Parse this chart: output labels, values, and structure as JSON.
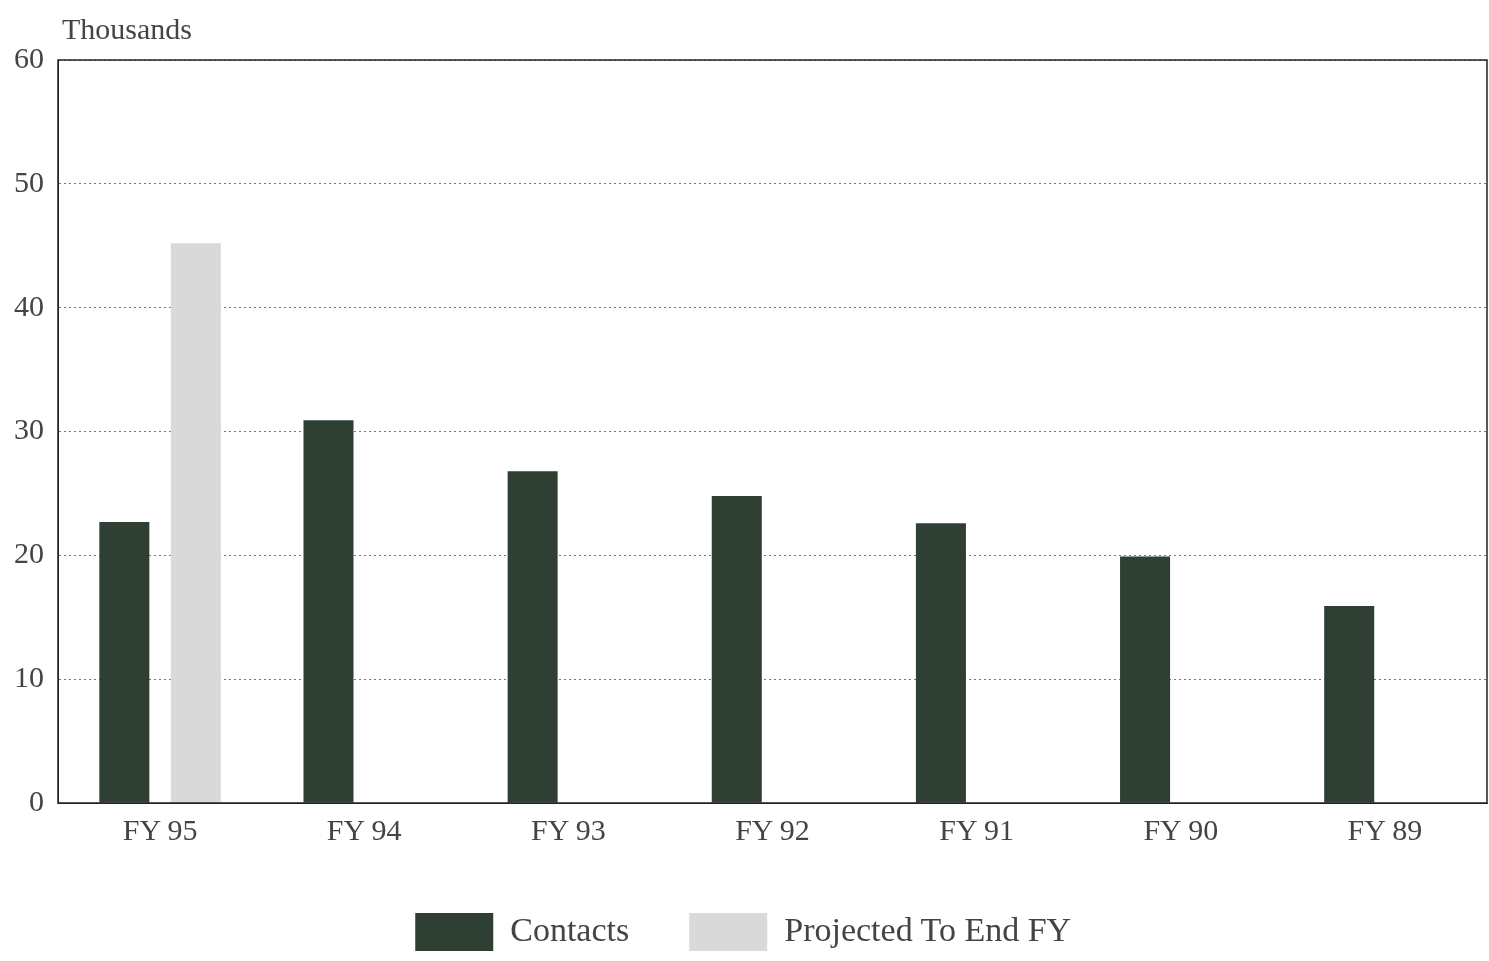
{
  "chart_data": {
    "type": "bar",
    "ylabel": "Thousands",
    "categories": [
      "FY 95",
      "FY 94",
      "FY 93",
      "FY 92",
      "FY 91",
      "FY 90",
      "FY 89"
    ],
    "series": [
      {
        "name": "Contacts",
        "color": "#2f3f33",
        "values": [
          22.7,
          30.9,
          26.8,
          24.8,
          22.6,
          19.9,
          15.9
        ]
      },
      {
        "name": "Projected To End FY",
        "color": "#d9d9d9",
        "values": [
          45.2,
          null,
          null,
          null,
          null,
          null,
          null
        ]
      }
    ],
    "ylim": [
      0,
      60
    ],
    "yticks": [
      0,
      10,
      20,
      30,
      40,
      50,
      60
    ],
    "grid": "y",
    "legend": "bottom"
  }
}
